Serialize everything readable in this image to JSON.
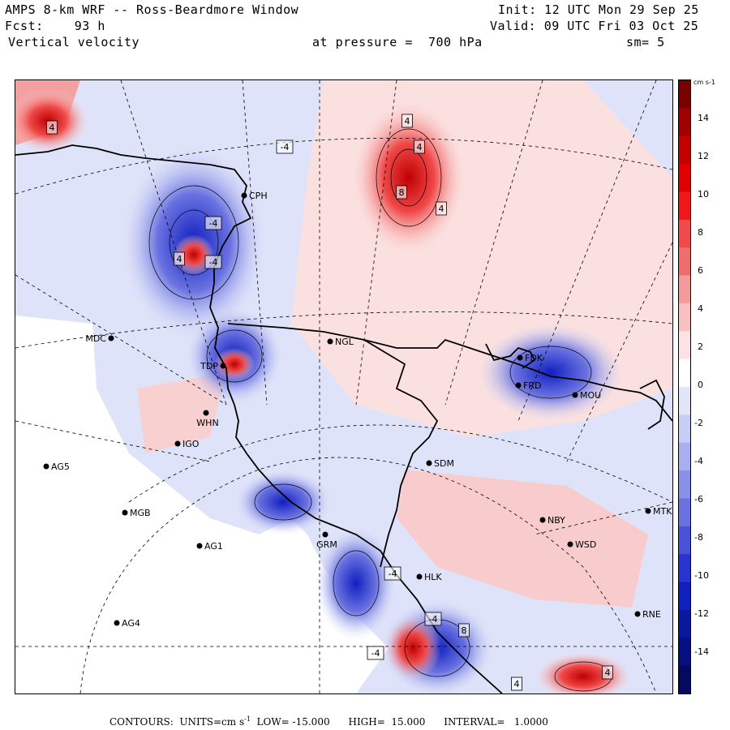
{
  "header": {
    "title": "AMPS 8-km WRF -- Ross-Beardmore Window",
    "forecast": "Fcst:    93 h",
    "field": "Vertical velocity",
    "pressure": "at pressure =  700 hPa",
    "init": "Init: 12 UTC Mon 29 Sep 25",
    "valid": "Valid: 09 UTC Fri 03 Oct 25",
    "smoothing": "sm= 5"
  },
  "colorbar": {
    "units": "cm s-1",
    "labels": [
      "14",
      "12",
      "10",
      "8",
      "6",
      "4",
      "2",
      "0",
      "-2",
      "-4",
      "-6",
      "-8",
      "-10",
      "-12",
      "-14"
    ],
    "colors": [
      "#7a0000",
      "#a00000",
      "#c40000",
      "#e00000",
      "#f01818",
      "#f24a4a",
      "#ee6e6e",
      "#f59a9a",
      "#f8c0c0",
      "#fce2e2",
      "#ffffff",
      "#e2e6fb",
      "#c8cdf5",
      "#a8aeee",
      "#8890e8",
      "#6a72e0",
      "#4a52d8",
      "#2a34d0",
      "#1020c0",
      "#0a18a0",
      "#061080",
      "#030a60"
    ]
  },
  "stations": [
    {
      "id": "CPH",
      "label": "CPH"
    },
    {
      "id": "MDC",
      "label": "MDC"
    },
    {
      "id": "NGL",
      "label": "NGL"
    },
    {
      "id": "TDP",
      "label": "TDP"
    },
    {
      "id": "FDK",
      "label": "FDK"
    },
    {
      "id": "FRD",
      "label": "FRD"
    },
    {
      "id": "MOU",
      "label": "MOU"
    },
    {
      "id": "WHN",
      "label": "WHN"
    },
    {
      "id": "IGO",
      "label": "IGO"
    },
    {
      "id": "SDM",
      "label": "SDM"
    },
    {
      "id": "AG5",
      "label": "AG5"
    },
    {
      "id": "MGB",
      "label": "MGB"
    },
    {
      "id": "NBY",
      "label": "NBY"
    },
    {
      "id": "MTK",
      "label": "MTK"
    },
    {
      "id": "AG1",
      "label": "AG1"
    },
    {
      "id": "GRM",
      "label": "GRM"
    },
    {
      "id": "WSD",
      "label": "WSD"
    },
    {
      "id": "HLK",
      "label": "HLK"
    },
    {
      "id": "RNE",
      "label": "RNE"
    },
    {
      "id": "AG4",
      "label": "AG4"
    }
  ],
  "contour_labels": [
    "4",
    "-4",
    "4",
    "4",
    "8",
    "4",
    "-4",
    "4",
    "-4",
    "-4",
    "8",
    "-4",
    "-4",
    "4",
    "4"
  ],
  "footer": {
    "contours": "CONTOURS:  UNITS=cm s",
    "units_exp": "-1",
    "rest": "  LOW= -15.000      HIGH=  15.000      INTERVAL=   1.0000"
  }
}
